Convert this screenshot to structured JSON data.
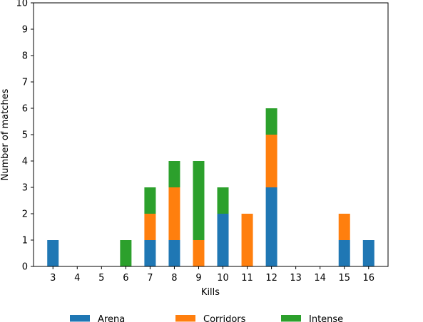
{
  "chart_data": {
    "type": "bar",
    "stacked": true,
    "title": "",
    "xlabel": "Kills",
    "ylabel": "Number of matches",
    "categories": [
      "3",
      "4",
      "5",
      "6",
      "7",
      "8",
      "9",
      "10",
      "11",
      "12",
      "13",
      "14",
      "15",
      "16"
    ],
    "ylim": [
      0,
      10
    ],
    "yticks": [
      "0",
      "1",
      "2",
      "3",
      "4",
      "5",
      "6",
      "7",
      "8",
      "9",
      "10"
    ],
    "grid": false,
    "legend_position": "bottom",
    "series": [
      {
        "name": "Arena",
        "color": "#1f77b4",
        "values": [
          1,
          0,
          0,
          0,
          1,
          1,
          0,
          2,
          0,
          3,
          0,
          0,
          1,
          1
        ]
      },
      {
        "name": "Corridors",
        "color": "#ff7f0e",
        "values": [
          0,
          0,
          0,
          0,
          1,
          2,
          1,
          0,
          2,
          2,
          0,
          0,
          1,
          0
        ]
      },
      {
        "name": "Intense",
        "color": "#2ca02c",
        "values": [
          0,
          0,
          0,
          1,
          1,
          1,
          3,
          1,
          0,
          1,
          0,
          0,
          0,
          0
        ]
      }
    ]
  }
}
